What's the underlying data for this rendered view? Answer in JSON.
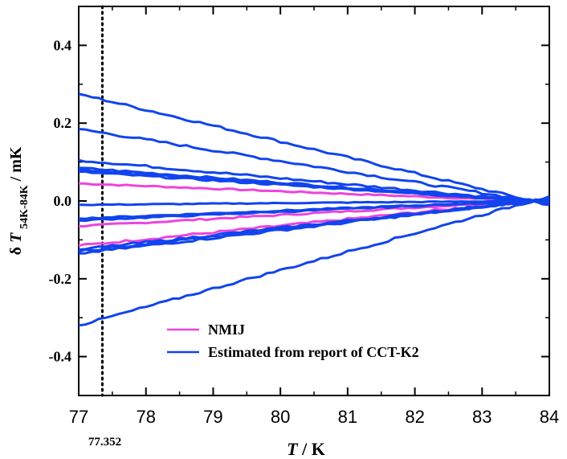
{
  "chart_data": {
    "type": "line",
    "xlabel": {
      "italic": "T",
      "rest": " / K"
    },
    "ylabel": {
      "prefix": "δ",
      "italic": "T",
      "subscript": "54K-84K",
      "rest": " / mK"
    },
    "xlim": [
      77,
      84
    ],
    "ylim": [
      -0.5,
      0.5
    ],
    "x_ticks": [
      "77",
      "78",
      "79",
      "80",
      "81",
      "82",
      "83",
      "84"
    ],
    "y_ticks": [
      "-0.4",
      "-0.2",
      "0.0",
      "0.2",
      "0.4"
    ],
    "grid": false,
    "legend_position": "bottom-right",
    "annotation": {
      "x": 77.352,
      "label": "77.352"
    },
    "series": [
      {
        "name": "NMIJ",
        "color": "#ee44dd",
        "y_at_77": [
          0.045,
          -0.065,
          -0.115
        ]
      },
      {
        "name": "Estimated from report of CCT-K2",
        "color": "#1144ee",
        "y_at_77": [
          0.275,
          0.185,
          0.105,
          0.085,
          0.08,
          0.075,
          -0.01,
          -0.045,
          -0.05,
          -0.125,
          -0.13,
          -0.135,
          -0.32
        ]
      }
    ],
    "converge_x": 83.75
  }
}
